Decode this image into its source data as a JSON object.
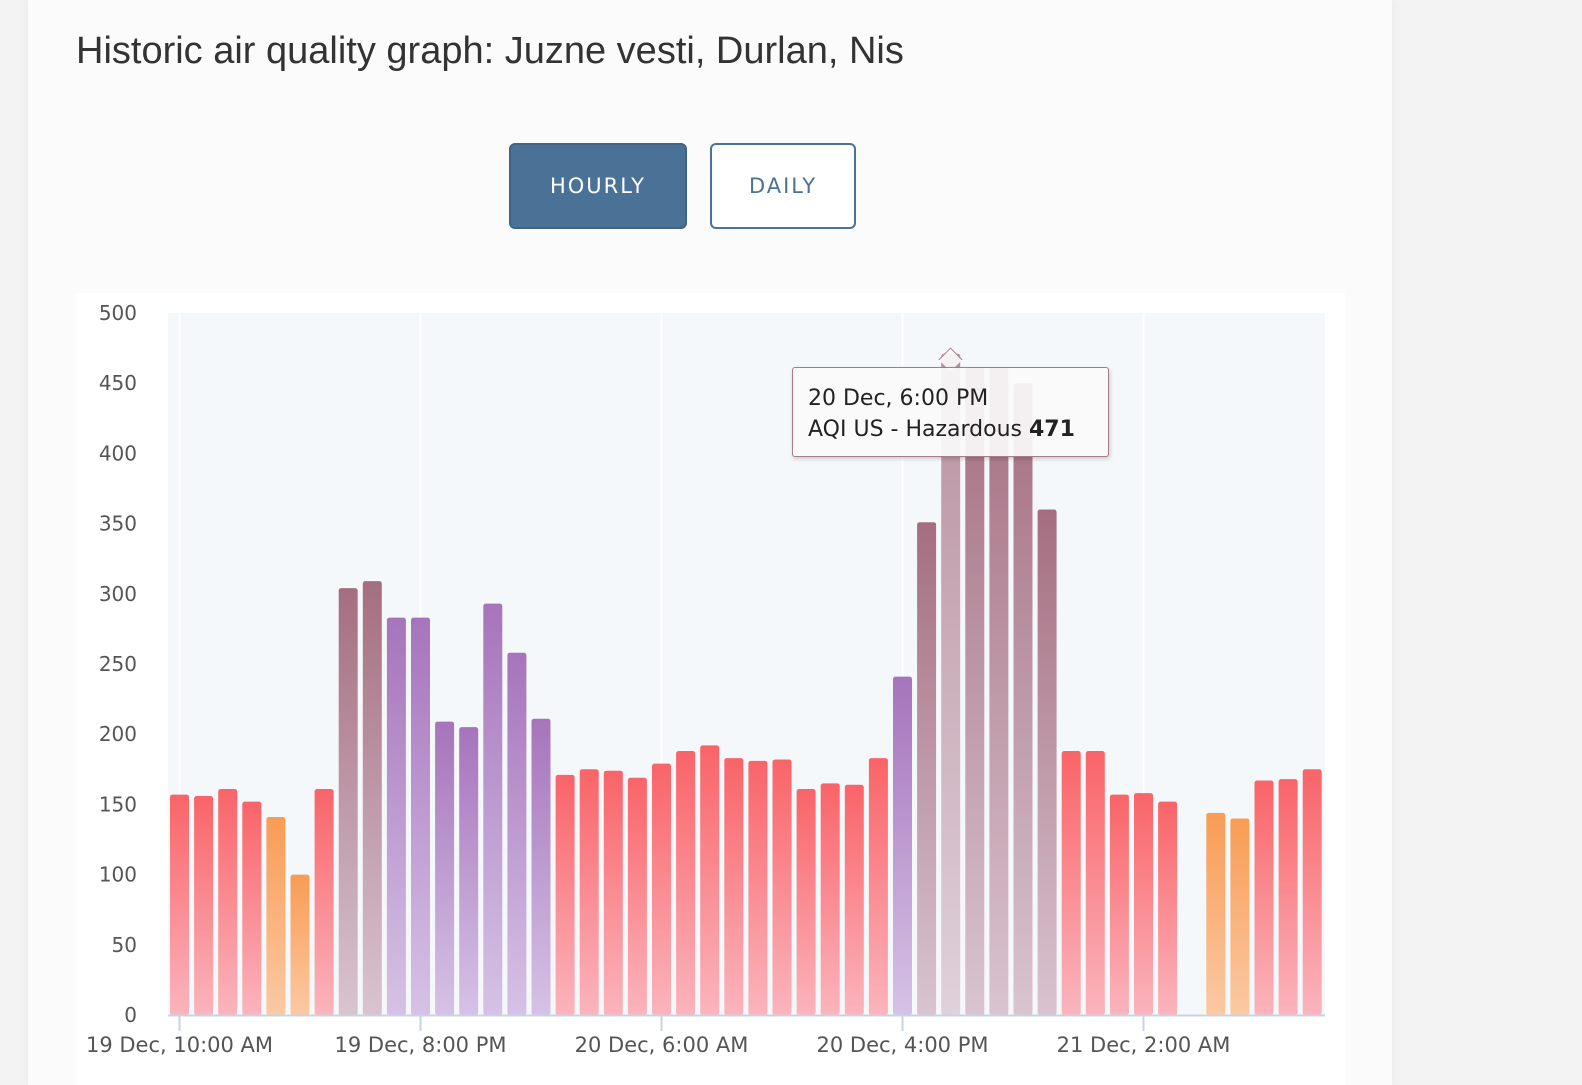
{
  "page": {
    "title": "Historic air quality graph: Juzne vesti, Durlan, Nis"
  },
  "toggle": {
    "hourly_label": "HOURLY",
    "daily_label": "DAILY",
    "selected": "HOURLY"
  },
  "tooltip": {
    "time": "20 Dec, 6:00 PM",
    "label": "AQI US - Hazardous",
    "value": "471"
  },
  "chart_data": {
    "type": "bar",
    "ylim": [
      0,
      500
    ],
    "yticks": [
      0,
      50,
      100,
      150,
      200,
      250,
      300,
      350,
      400,
      450,
      500
    ],
    "xtick_labels": [
      {
        "label": "19 Dec, 10:00 AM",
        "index": 0
      },
      {
        "label": "19 Dec, 8:00 PM",
        "index": 10
      },
      {
        "label": "20 Dec, 6:00 AM",
        "index": 20
      },
      {
        "label": "20 Dec, 4:00 PM",
        "index": 30
      },
      {
        "label": "21 Dec, 2:00 AM",
        "index": 40
      }
    ],
    "start": "19 Dec, 10:00 AM",
    "interval": "1 hour",
    "values": [
      157,
      156,
      161,
      152,
      141,
      100,
      161,
      304,
      309,
      283,
      283,
      209,
      205,
      293,
      258,
      211,
      171,
      175,
      174,
      169,
      179,
      188,
      192,
      183,
      181,
      182,
      161,
      165,
      164,
      183,
      241,
      351,
      471,
      461,
      461,
      450,
      360,
      188,
      188,
      157,
      158,
      152,
      null,
      144,
      140,
      167,
      168,
      175
    ],
    "highlighted": "20 Dec, 6:00 PM",
    "category_colors": {
      "unhealthy_sensitive": "#f9a361",
      "unhealthy": "#f96a6f",
      "very_unhealthy": "#a97abc",
      "hazardous": "#a87383"
    },
    "grid": true
  }
}
